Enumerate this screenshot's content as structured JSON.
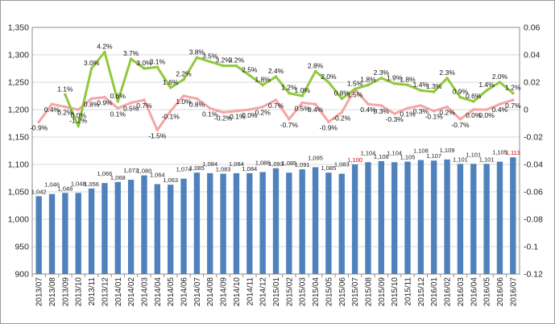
{
  "chart_data": {
    "type": "bar",
    "categories": [
      "2013/07",
      "2013/08",
      "2013/09",
      "2013/10",
      "2013/11",
      "2013/12",
      "2014/01",
      "2014/02",
      "2014/03",
      "2014/04",
      "2014/05",
      "2014/06",
      "2014/07",
      "2014/08",
      "2014/09",
      "2014/10",
      "2014/11",
      "2014/12",
      "2015/01",
      "2015/02",
      "2015/03",
      "2015/04",
      "2015/05",
      "2015/06",
      "2015/07",
      "2015/08",
      "2015/09",
      "2015/10",
      "2015/11",
      "2015/12",
      "2016/01",
      "2016/02",
      "2016/03",
      "2016/04",
      "2016/05",
      "2016/06",
      "2016/07"
    ],
    "series": [
      {
        "values": [
          1042,
          1046,
          1048,
          1048,
          1056,
          1066,
          1068,
          1072,
          1080,
          1064,
          1063,
          1074,
          1085,
          1084,
          1083,
          1084,
          1084,
          1086,
          1093,
          1085,
          1091,
          1095,
          1085,
          1083,
          1100,
          1104,
          1106,
          1104,
          1105,
          1108,
          1107,
          1109,
          1101,
          1101,
          1101,
          1105,
          1113
        ],
        "labels": [
          "1,042",
          "1,046",
          "1,048",
          "1,048",
          "1,056",
          "1,066",
          "1,068",
          "1,072",
          "1,080",
          "1,064",
          "1,063",
          "1,074",
          "1,085",
          "1,084",
          "1,083",
          "1,084",
          "1,084",
          "1,086",
          "1,093",
          "1,085",
          "1,091",
          "1,095",
          "1,085",
          "1,083",
          "1,100",
          "1,104",
          "1,106",
          "1,104",
          "1,105",
          "1,108",
          "1,107",
          "1,109",
          "1,101",
          "1,101",
          "1,101",
          "1,105",
          "1,113"
        ],
        "label_colors": {
          "24": "#cc0000",
          "36": "#cc0000"
        },
        "color": "#4f81bd",
        "axis": "left"
      },
      {
        "values": [
          -0.009,
          0.004,
          0.002,
          0,
          0.008,
          0.009,
          0.001,
          0.005,
          0.007,
          -0.015,
          -0.001,
          0.01,
          0.008,
          0.001,
          -0.002,
          -0.001,
          0,
          0.002,
          0.007,
          -0.007,
          0.005,
          0.004,
          -0.009,
          -0.002,
          0.015,
          0.004,
          0.003,
          -0.003,
          0.001,
          0.003,
          -0.001,
          0.002,
          -0.007,
          0,
          0,
          0.004,
          0.007
        ],
        "labels": [
          "-0.9%",
          "0.4%",
          "0.2%",
          "0.0%",
          "0.8%",
          "0.9%",
          "0.1%",
          "0.5%",
          "0.7%",
          "-1.5%",
          "-0.1%",
          "1.0%",
          "0.8%",
          "0.1%",
          "-0.2%",
          "-0.1%",
          "0.0%",
          "0.2%",
          "0.7%",
          "-0.7%",
          "0.5%",
          "0.4%",
          "-0.9%",
          "-0.2%",
          "1.5%",
          "0.4%",
          "0.3%",
          "-0.3%",
          "0.1%",
          "0.3%",
          "-0.1%",
          "0.2%",
          "-0.7%",
          "0.0%",
          "0.0%",
          "0.4%",
          "0.7%"
        ],
        "color": "#f4a6a6",
        "axis": "right"
      },
      {
        "values": [
          null,
          null,
          0.011,
          -0.012,
          0.03,
          0.042,
          0.006,
          0.037,
          0.03,
          0.031,
          0.016,
          0.022,
          0.038,
          0.035,
          0.032,
          0.032,
          0.025,
          0.018,
          0.024,
          0.012,
          0.01,
          0.028,
          0.02,
          0.008,
          0.015,
          0.018,
          0.023,
          0.019,
          0.018,
          0.014,
          0.013,
          0.023,
          0.009,
          0.006,
          0.014,
          0.02,
          0.012
        ],
        "labels": [
          null,
          null,
          "1.1%",
          "-1.2%",
          "3.0%",
          "4.2%",
          "0.6%",
          "3.7%",
          "3.0%",
          "3.1%",
          "1.6%",
          "2.2%",
          "3.8%",
          "3.5%",
          "3.2%",
          "3.2%",
          "2.5%",
          "1.8%",
          "2.4%",
          "1.2%",
          "1.0%",
          "2.8%",
          "2.0%",
          "0.8%",
          "1.5%",
          "1.8%",
          "2.3%",
          "1.9%",
          "1.8%",
          "1.4%",
          "1.3%",
          "2.3%",
          "0.9%",
          "0.6%",
          "1.4%",
          "2.0%",
          "1.2%"
        ],
        "color": "#92c83e",
        "axis": "right"
      }
    ],
    "y_left": {
      "ticks": [
        "900",
        "950",
        "1,000",
        "1,050",
        "1,100",
        "1,150",
        "1,200",
        "1,250",
        "1,300",
        "1,350"
      ],
      "ylim": [
        900,
        1350
      ]
    },
    "y_right": {
      "ticks": [
        "-0.12",
        "-0.1",
        "-0.08",
        "-0.06",
        "-0.04",
        "-0.02",
        "0",
        "0.02",
        "0.04",
        "0.06"
      ],
      "ylim": [
        -0.12,
        0.06
      ]
    },
    "grid": true,
    "legend": "none"
  }
}
